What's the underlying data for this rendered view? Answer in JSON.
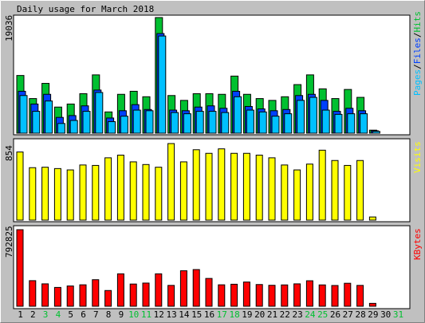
{
  "title": "Daily usage for March 2018",
  "colors": {
    "background": "#C0C0C0",
    "panel": "#FFFFFF",
    "hits": "#00C030",
    "files": "#0040FF",
    "pages": "#00C0FF",
    "visits": "#FFFF00",
    "kbytes": "#FF0000",
    "weekend_day": "#00C030",
    "weekday": "#000000"
  },
  "chart_data": [
    {
      "type": "bar",
      "panel": "hits-files-pages",
      "y_label": "19036",
      "legend": {
        "pages": "Pages",
        "sep1": "/",
        "files": "Files",
        "sep2": "/",
        "hits": "Hits"
      },
      "ylim": [
        0,
        19036
      ],
      "categories": [
        "1",
        "2",
        "3",
        "4",
        "5",
        "6",
        "7",
        "8",
        "9",
        "10",
        "11",
        "12",
        "13",
        "14",
        "15",
        "16",
        "17",
        "18",
        "19",
        "20",
        "21",
        "22",
        "23",
        "24",
        "25",
        "26",
        "27",
        "28",
        "29",
        "30",
        "31"
      ],
      "series": [
        {
          "name": "Hits",
          "values": [
            9500,
            5700,
            8200,
            4300,
            4800,
            6500,
            9600,
            3500,
            6400,
            6900,
            6000,
            19036,
            6200,
            5400,
            6500,
            6500,
            6400,
            9400,
            6400,
            5700,
            5400,
            6000,
            8000,
            9600,
            7300,
            5700,
            7200,
            5900,
            500,
            0,
            0
          ]
        },
        {
          "name": "Files",
          "values": [
            6900,
            4800,
            6400,
            2600,
            2900,
            4500,
            7100,
            2500,
            3700,
            4700,
            3900,
            16400,
            3800,
            3700,
            4300,
            4500,
            4100,
            6900,
            4400,
            4000,
            3700,
            3900,
            6200,
            6400,
            5400,
            3600,
            4100,
            3700,
            400,
            0,
            0
          ]
        },
        {
          "name": "Pages",
          "values": [
            6200,
            3600,
            5300,
            1600,
            2100,
            3600,
            6700,
            1900,
            2800,
            3800,
            3700,
            16000,
            3400,
            3200,
            3600,
            3600,
            3400,
            6000,
            3800,
            3500,
            2800,
            3200,
            5400,
            5900,
            3800,
            3100,
            3200,
            3200,
            300,
            0,
            0
          ]
        }
      ]
    },
    {
      "type": "bar",
      "panel": "visits",
      "y_label": "854",
      "legend": {
        "visits": "Visits"
      },
      "ylim": [
        0,
        854
      ],
      "categories": [
        "1",
        "2",
        "3",
        "4",
        "5",
        "6",
        "7",
        "8",
        "9",
        "10",
        "11",
        "12",
        "13",
        "14",
        "15",
        "16",
        "17",
        "18",
        "19",
        "20",
        "21",
        "22",
        "23",
        "24",
        "25",
        "26",
        "27",
        "28",
        "29",
        "30",
        "31"
      ],
      "series": [
        {
          "name": "Visits",
          "values": [
            760,
            585,
            590,
            575,
            560,
            615,
            610,
            695,
            725,
            650,
            620,
            590,
            854,
            650,
            785,
            745,
            795,
            745,
            745,
            725,
            695,
            615,
            560,
            625,
            780,
            665,
            610,
            665,
            35,
            0,
            0
          ]
        }
      ]
    },
    {
      "type": "bar",
      "panel": "kbytes",
      "y_label": "792825",
      "legend": {
        "kbytes": "KBytes"
      },
      "ylim": [
        0,
        792825
      ],
      "categories": [
        "1",
        "2",
        "3",
        "4",
        "5",
        "6",
        "7",
        "8",
        "9",
        "10",
        "11",
        "12",
        "13",
        "14",
        "15",
        "16",
        "17",
        "18",
        "19",
        "20",
        "21",
        "22",
        "23",
        "24",
        "25",
        "26",
        "27",
        "28",
        "29",
        "30",
        "31"
      ],
      "series": [
        {
          "name": "KBytes",
          "values": [
            792825,
            265000,
            232000,
            195000,
            210000,
            222000,
            275000,
            163000,
            336000,
            230000,
            240000,
            336000,
            216000,
            368000,
            380000,
            288000,
            222000,
            228000,
            251000,
            225000,
            217000,
            221000,
            232000,
            264000,
            221000,
            215000,
            238000,
            216000,
            30000,
            0,
            0
          ]
        }
      ]
    }
  ],
  "x_axis": {
    "days": [
      "1",
      "2",
      "3",
      "4",
      "5",
      "6",
      "7",
      "8",
      "9",
      "10",
      "11",
      "12",
      "13",
      "14",
      "15",
      "16",
      "17",
      "18",
      "19",
      "20",
      "21",
      "22",
      "23",
      "24",
      "25",
      "26",
      "27",
      "28",
      "29",
      "30",
      "31"
    ],
    "weekend": [
      "3",
      "4",
      "10",
      "11",
      "17",
      "18",
      "24",
      "25",
      "31"
    ]
  }
}
